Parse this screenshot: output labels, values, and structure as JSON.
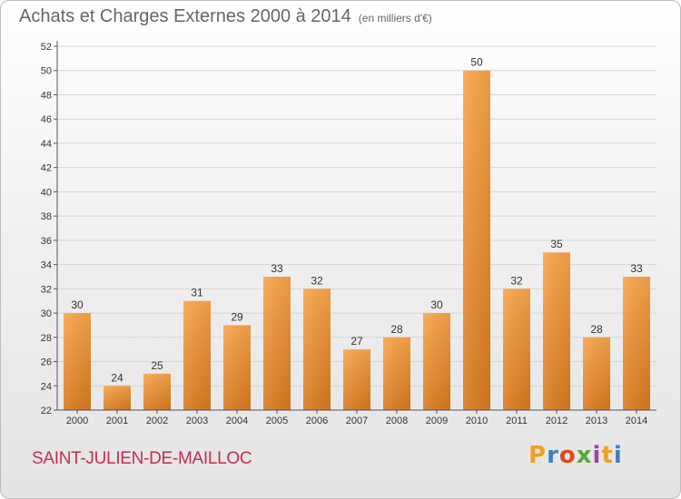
{
  "header": {
    "title": "Achats et Charges Externes 2000 à 2014",
    "subtitle": "(en milliers d'€)"
  },
  "footer": {
    "commune": "SAINT-JULIEN-DE-MAILLOC",
    "logo_text": "Proxiti"
  },
  "colors": {
    "bar_top": "#f8a54a",
    "bar_bottom": "#d97a1e",
    "grid": "#d6d6d6",
    "axis": "#555555"
  },
  "chart_data": {
    "type": "bar",
    "title": "Achats et Charges Externes 2000 à 2014",
    "subtitle": "(en milliers d'€)",
    "xlabel": "",
    "ylabel": "",
    "categories": [
      "2000",
      "2001",
      "2002",
      "2003",
      "2004",
      "2005",
      "2006",
      "2007",
      "2008",
      "2009",
      "2010",
      "2011",
      "2012",
      "2013",
      "2014"
    ],
    "values": [
      30,
      24,
      25,
      31,
      29,
      33,
      32,
      27,
      28,
      30,
      50,
      32,
      35,
      28,
      33
    ],
    "ylim": [
      22,
      52
    ],
    "ytick_step": 2,
    "grid": true,
    "legend": "none"
  }
}
